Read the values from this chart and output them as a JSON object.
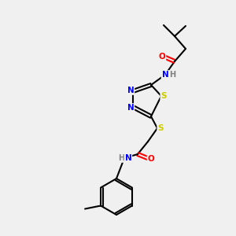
{
  "background_color": "#f0f0f0",
  "atom_colors": {
    "N": "#0000ff",
    "O": "#ff0000",
    "S": "#cccc00",
    "C": "#000000",
    "H": "#808080"
  },
  "lw": 1.5,
  "font_size": 7.5
}
